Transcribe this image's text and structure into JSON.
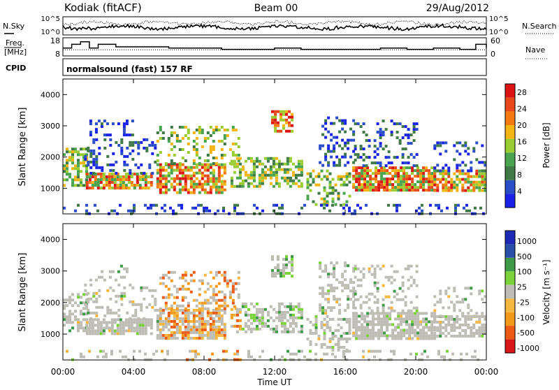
{
  "header": {
    "station": "Kodiak (fitACF)",
    "beam": "Beam 00",
    "date": "29/Aug/2012"
  },
  "left_labels": {
    "nsky": "N.Sky",
    "freq_line1": "Freq.",
    "freq_line2": "[MHz]",
    "cpid": "CPID"
  },
  "right_labels": {
    "nsearch": "N.Search",
    "nave": "Nave"
  },
  "strip_ticks": {
    "noise_left": [
      "10^5",
      "10^0"
    ],
    "noise_right": [
      "10^5",
      "10^0"
    ],
    "freq_left": [
      "18",
      "8"
    ],
    "nave_right": [
      "60",
      "0"
    ]
  },
  "cpid_text": "normalsound (fast) 157 RF",
  "colors": {
    "power": [
      "#1a22e6",
      "#2a4ec8",
      "#3f7a46",
      "#4aa34e",
      "#9acd32",
      "#f2b514",
      "#f47a10",
      "#e8481a",
      "#dc1414"
    ],
    "velocity_neg": [
      "#d81818",
      "#ec5a14",
      "#f39a1a",
      "#f5b740"
    ],
    "velocity_zero": "#bdbdb5",
    "velocity_pos": [
      "#7ad33a",
      "#3f9a48",
      "#2a4fa8",
      "#1c2ab4"
    ]
  },
  "chart_data": [
    {
      "type": "line",
      "name_key": "noise",
      "series": [
        {
          "name": "N.Sky"
        },
        {
          "name": "N.Search"
        }
      ]
    },
    {
      "type": "line",
      "name_key": "freq_nave",
      "series": [
        {
          "name": "Freq.",
          "x": [
            0,
            0.5,
            1,
            1.5,
            2,
            3,
            5,
            6,
            7.5,
            9,
            10.5,
            12,
            13.5,
            15,
            16.5,
            18,
            19.5,
            21,
            22.5,
            23.4,
            24
          ],
          "values": [
            12,
            15,
            17,
            12,
            15,
            13,
            13,
            12,
            12,
            11,
            11,
            12,
            11,
            11,
            11,
            12,
            11,
            12,
            11,
            15,
            12
          ]
        },
        {
          "name": "Nave",
          "values": [
            20,
            20,
            20,
            20,
            20,
            20,
            20,
            20,
            20,
            20,
            20,
            20,
            20,
            20,
            20,
            20,
            20,
            20,
            20,
            20,
            20
          ]
        }
      ]
    },
    {
      "type": "heatmap",
      "name_key": "power",
      "xlabel": "",
      "ylabel": "Slant Range [km]",
      "xlim": [
        0,
        24
      ],
      "ylim": [
        180,
        4500
      ],
      "yticks": [
        "1000",
        "2000",
        "3000",
        "4000"
      ],
      "colorbar_label": "Power [dB]",
      "colorbar_ticks": [
        "4",
        "8",
        "12",
        "16",
        "20",
        "24",
        "28"
      ],
      "colorbar_range": [
        0,
        30
      ]
    },
    {
      "type": "heatmap",
      "name_key": "velocity",
      "xlabel": "Time UT",
      "ylabel": "Slant Range [km]",
      "xlim": [
        0,
        24
      ],
      "ylim": [
        180,
        4500
      ],
      "xticks": [
        "00:00",
        "04:00",
        "08:00",
        "12:00",
        "16:00",
        "20:00",
        "00:00"
      ],
      "yticks": [
        "1000",
        "2000",
        "3000",
        "4000"
      ],
      "colorbar_label": "Velocity [m s⁻¹]",
      "colorbar_ticks": [
        "1000",
        "500",
        "100",
        "25",
        "-25",
        "-100",
        "-500",
        "-1000"
      ]
    }
  ]
}
